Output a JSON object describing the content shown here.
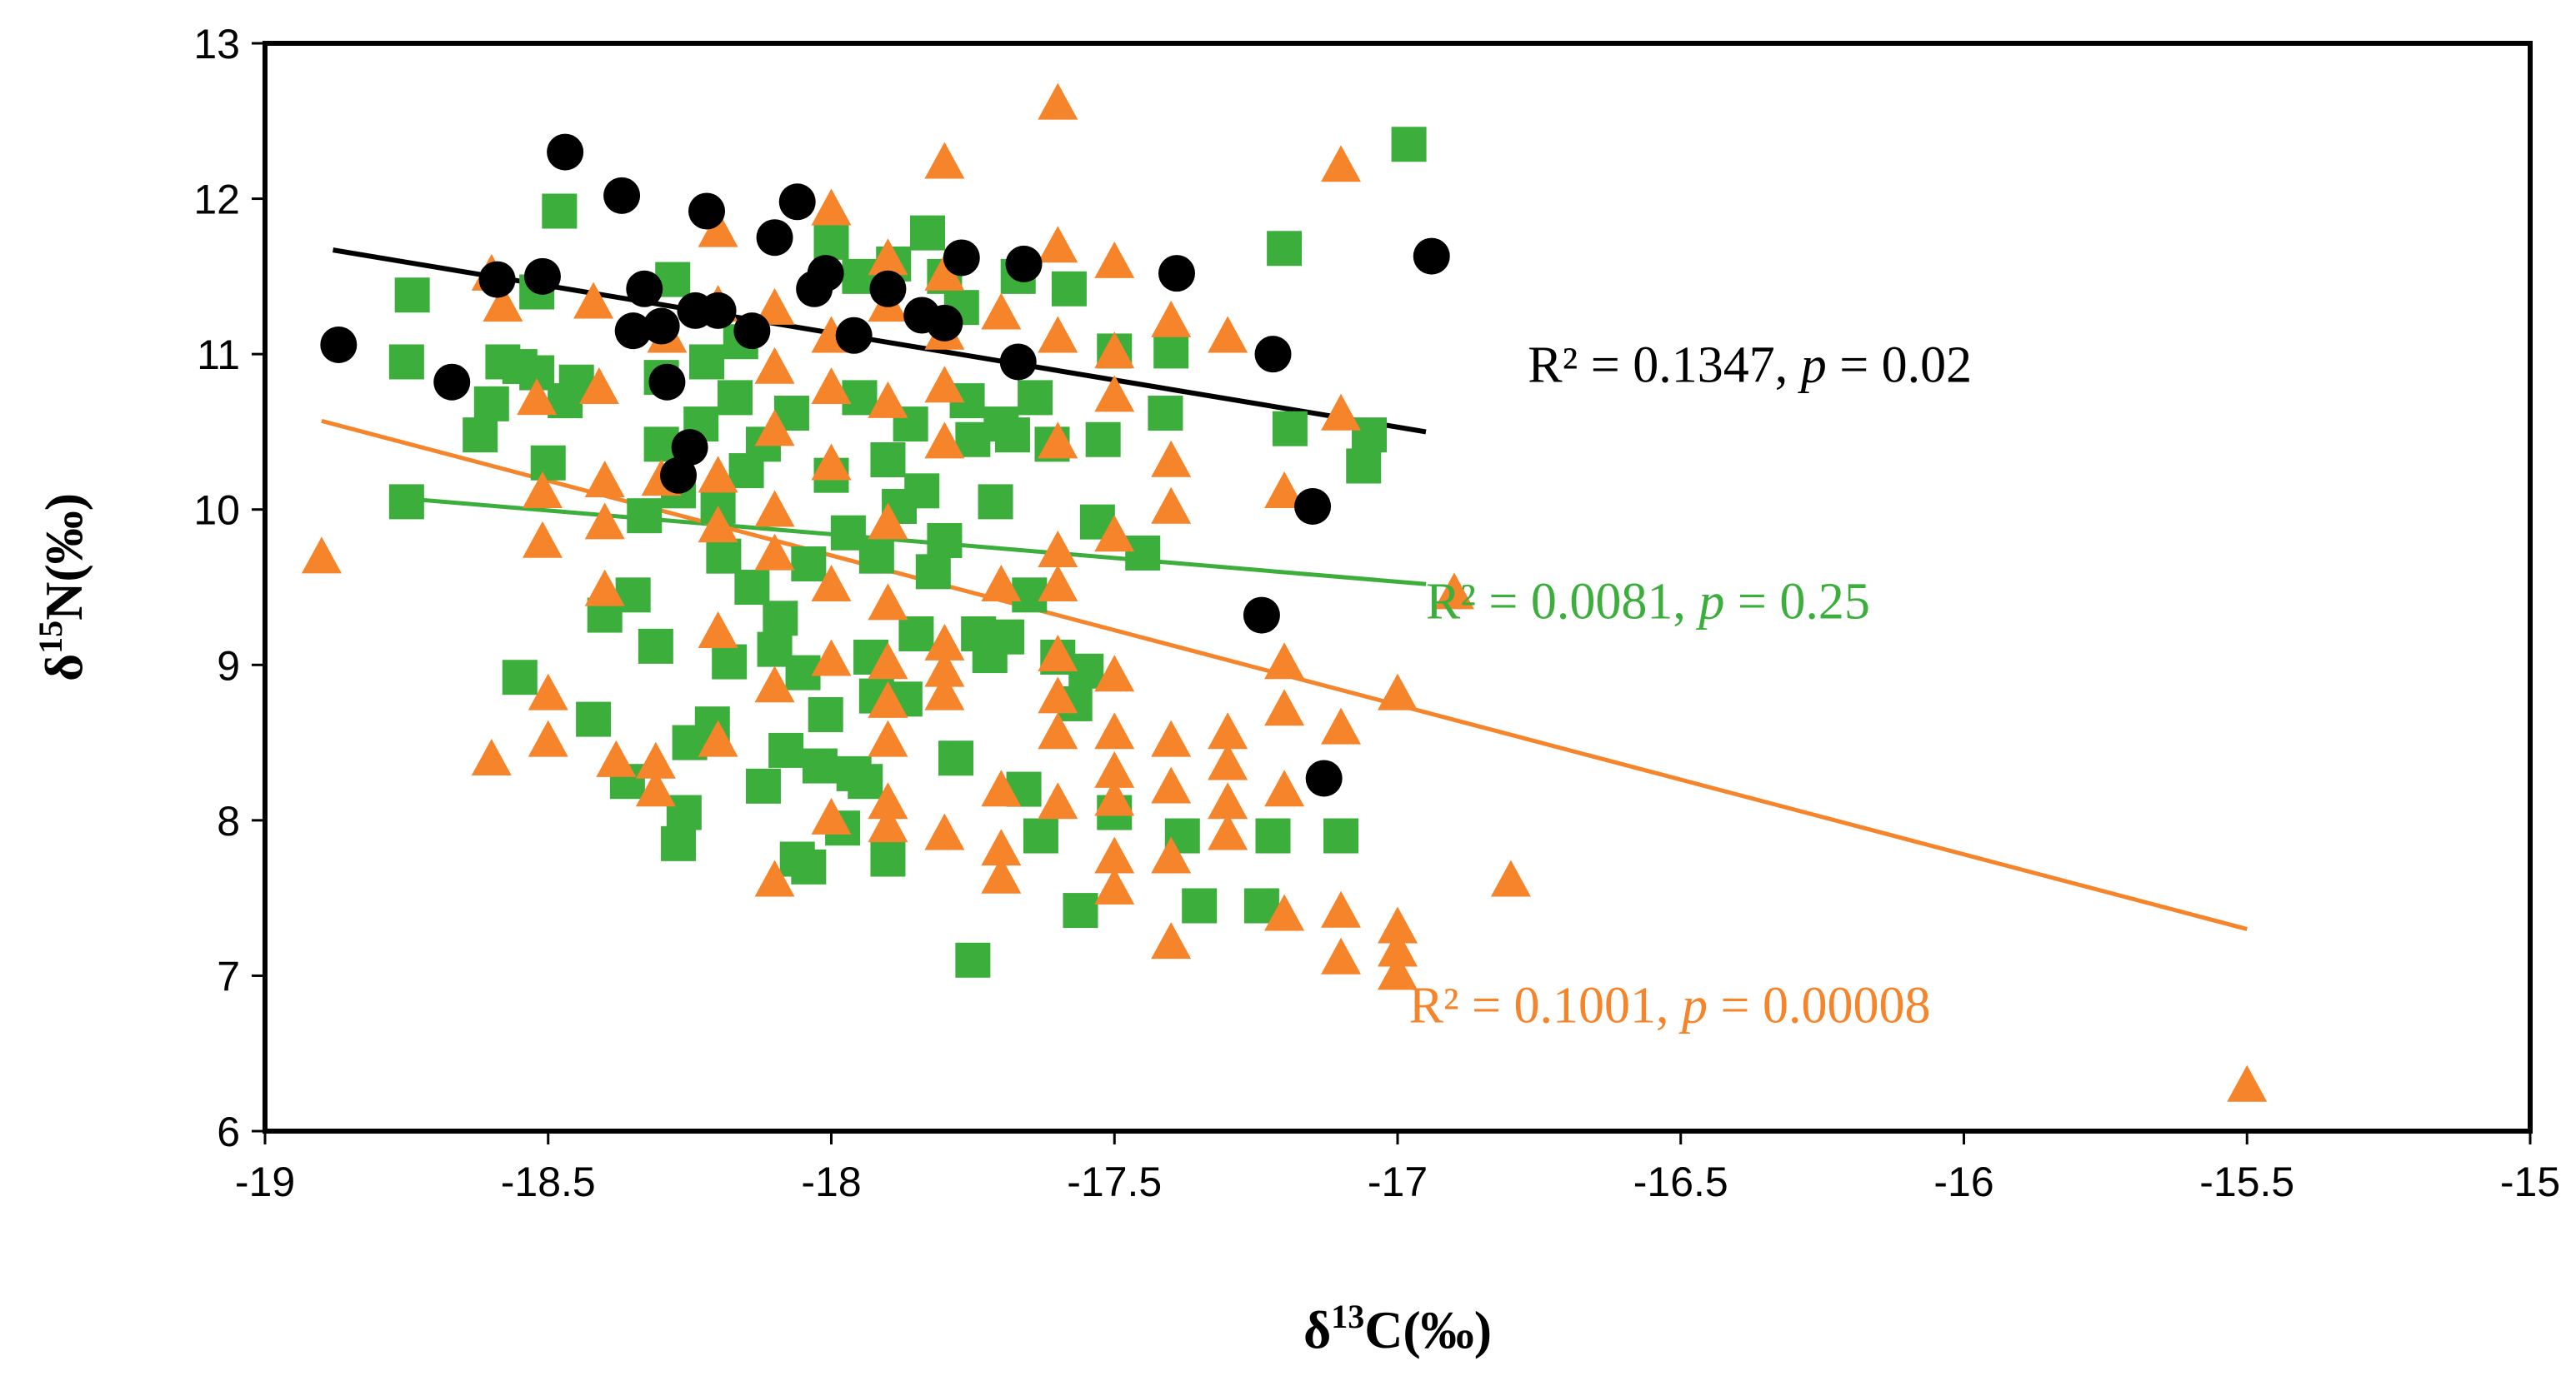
{
  "chart_data": {
    "type": "scatter",
    "title": "",
    "xlabel": {
      "prefix": "δ",
      "sup": "13",
      "suffix": "C(‰)"
    },
    "ylabel": {
      "prefix": "δ",
      "sup": "15",
      "suffix": "N(‰)"
    },
    "xlim": [
      -19,
      -15
    ],
    "ylim": [
      6,
      13
    ],
    "xticks": [
      -19,
      -18.5,
      -18,
      -17.5,
      -17,
      -16.5,
      -16,
      -15.5,
      -15
    ],
    "yticks": [
      6,
      7,
      8,
      9,
      10,
      11,
      12,
      13
    ],
    "xtick_labels": [
      "-19",
      "-18.5",
      "-18",
      "-17.5",
      "-17",
      "-16.5",
      "-16",
      "-15.5",
      "-15"
    ],
    "ytick_labels": [
      "6",
      "7",
      "8",
      "9",
      "10",
      "11",
      "12",
      "13"
    ],
    "grid": false,
    "series": [
      {
        "name": "green squares",
        "marker": "square",
        "color": "#3cae3c",
        "trend": {
          "x": [
            -18.75,
            -16.95
          ],
          "y": [
            10.07,
            9.52
          ]
        },
        "annotation": {
          "r2_text": "R² = 0.0081, ",
          "p_label": "p",
          "p_text": " = 0.25",
          "x": -16.95,
          "y": 9.3
        },
        "points": [
          [
            -18.74,
            11.38
          ],
          [
            -18.75,
            10.95
          ],
          [
            -18.75,
            10.05
          ],
          [
            -18.62,
            10.48
          ],
          [
            -18.6,
            10.68
          ],
          [
            -18.58,
            10.95
          ],
          [
            -18.55,
            10.92
          ],
          [
            -18.52,
            11.4
          ],
          [
            -18.52,
            10.88
          ],
          [
            -18.5,
            10.3
          ],
          [
            -18.48,
            11.92
          ],
          [
            -18.47,
            10.7
          ],
          [
            -18.45,
            10.82
          ],
          [
            -18.55,
            8.92
          ],
          [
            -18.42,
            8.65
          ],
          [
            -18.4,
            9.32
          ],
          [
            -18.36,
            8.25
          ],
          [
            -18.35,
            9.45
          ],
          [
            -18.33,
            9.96
          ],
          [
            -18.31,
            9.12
          ],
          [
            -18.3,
            10.42
          ],
          [
            -18.3,
            10.85
          ],
          [
            -18.28,
            11.48
          ],
          [
            -18.27,
            10.12
          ],
          [
            -18.27,
            7.85
          ],
          [
            -18.26,
            8.05
          ],
          [
            -18.25,
            8.5
          ],
          [
            -18.23,
            10.55
          ],
          [
            -18.22,
            10.95
          ],
          [
            -18.21,
            8.62
          ],
          [
            -18.2,
            10.02
          ],
          [
            -18.19,
            9.7
          ],
          [
            -18.18,
            9.02
          ],
          [
            -18.17,
            10.72
          ],
          [
            -18.16,
            11.08
          ],
          [
            -18.15,
            10.25
          ],
          [
            -18.14,
            9.5
          ],
          [
            -18.12,
            10.42
          ],
          [
            -18.12,
            8.22
          ],
          [
            -18.1,
            9.1
          ],
          [
            -18.09,
            9.3
          ],
          [
            -18.08,
            8.45
          ],
          [
            -18.07,
            10.62
          ],
          [
            -18.06,
            7.75
          ],
          [
            -18.05,
            8.95
          ],
          [
            -18.04,
            9.65
          ],
          [
            -18.04,
            7.7
          ],
          [
            -18.02,
            8.35
          ],
          [
            -18.01,
            8.68
          ],
          [
            -18.0,
            10.22
          ],
          [
            -18.0,
            11.72
          ],
          [
            -17.98,
            7.95
          ],
          [
            -17.97,
            9.85
          ],
          [
            -17.96,
            8.3
          ],
          [
            -17.95,
            10.72
          ],
          [
            -17.95,
            11.5
          ],
          [
            -17.94,
            8.25
          ],
          [
            -17.93,
            9.05
          ],
          [
            -17.92,
            8.8
          ],
          [
            -17.92,
            9.7
          ],
          [
            -17.9,
            7.75
          ],
          [
            -17.9,
            10.32
          ],
          [
            -17.89,
            11.58
          ],
          [
            -17.88,
            10.02
          ],
          [
            -17.87,
            8.78
          ],
          [
            -17.86,
            10.55
          ],
          [
            -17.85,
            9.2
          ],
          [
            -17.84,
            10.12
          ],
          [
            -17.83,
            11.78
          ],
          [
            -17.82,
            9.6
          ],
          [
            -17.8,
            9.8
          ],
          [
            -17.8,
            11.5
          ],
          [
            -17.78,
            8.4
          ],
          [
            -17.77,
            11.3
          ],
          [
            -17.76,
            10.7
          ],
          [
            -17.75,
            10.45
          ],
          [
            -17.75,
            7.1
          ],
          [
            -17.74,
            9.2
          ],
          [
            -17.72,
            9.06
          ],
          [
            -17.71,
            10.05
          ],
          [
            -17.7,
            10.55
          ],
          [
            -17.69,
            9.18
          ],
          [
            -17.68,
            10.48
          ],
          [
            -17.67,
            11.5
          ],
          [
            -17.66,
            8.2
          ],
          [
            -17.65,
            9.45
          ],
          [
            -17.64,
            10.72
          ],
          [
            -17.63,
            7.9
          ],
          [
            -17.61,
            10.42
          ],
          [
            -17.6,
            9.05
          ],
          [
            -17.58,
            11.42
          ],
          [
            -17.57,
            8.75
          ],
          [
            -17.56,
            7.42
          ],
          [
            -17.55,
            8.96
          ],
          [
            -17.53,
            9.92
          ],
          [
            -17.52,
            10.45
          ],
          [
            -17.5,
            11.02
          ],
          [
            -17.5,
            8.05
          ],
          [
            -17.45,
            9.72
          ],
          [
            -17.41,
            10.62
          ],
          [
            -17.4,
            11.02
          ],
          [
            -17.38,
            7.9
          ],
          [
            -17.35,
            7.45
          ],
          [
            -17.24,
            7.45
          ],
          [
            -17.22,
            7.9
          ],
          [
            -17.2,
            11.68
          ],
          [
            -17.19,
            10.52
          ],
          [
            -17.1,
            7.9
          ],
          [
            -17.06,
            10.28
          ],
          [
            -17.05,
            10.48
          ],
          [
            -16.98,
            12.35
          ]
        ]
      },
      {
        "name": "orange triangles",
        "marker": "triangle",
        "color": "#f5842a",
        "trend": {
          "x": [
            -18.9,
            -15.5
          ],
          "y": [
            10.57,
            7.3
          ]
        },
        "annotation": {
          "r2_text": "R² = 0.1001, ",
          "p_label": "p",
          "p_text": " = 0.00008",
          "x": -16.98,
          "y": 6.7
        },
        "points": [
          [
            -18.9,
            9.68
          ],
          [
            -18.6,
            11.5
          ],
          [
            -18.6,
            8.38
          ],
          [
            -18.58,
            11.3
          ],
          [
            -18.52,
            10.7
          ],
          [
            -18.51,
            10.1
          ],
          [
            -18.51,
            9.78
          ],
          [
            -18.5,
            8.5
          ],
          [
            -18.5,
            8.8
          ],
          [
            -18.42,
            11.32
          ],
          [
            -18.41,
            10.77
          ],
          [
            -18.4,
            10.17
          ],
          [
            -18.4,
            9.47
          ],
          [
            -18.4,
            9.9
          ],
          [
            -18.38,
            8.37
          ],
          [
            -18.31,
            8.36
          ],
          [
            -18.31,
            8.18
          ],
          [
            -18.3,
            10.18
          ],
          [
            -18.29,
            11.1
          ],
          [
            -18.2,
            11.78
          ],
          [
            -18.2,
            11.3
          ],
          [
            -18.2,
            10.2
          ],
          [
            -18.2,
            9.88
          ],
          [
            -18.2,
            9.2
          ],
          [
            -18.2,
            8.5
          ],
          [
            -18.1,
            11.28
          ],
          [
            -18.1,
            10.9
          ],
          [
            -18.1,
            10.5
          ],
          [
            -18.1,
            9.98
          ],
          [
            -18.1,
            9.7
          ],
          [
            -18.1,
            8.85
          ],
          [
            -18.1,
            7.6
          ],
          [
            -18.0,
            11.92
          ],
          [
            -18.0,
            11.1
          ],
          [
            -18.0,
            10.77
          ],
          [
            -18.0,
            10.28
          ],
          [
            -18.0,
            9.5
          ],
          [
            -18.0,
            9.02
          ],
          [
            -18.0,
            8.0
          ],
          [
            -17.9,
            11.6
          ],
          [
            -17.9,
            11.3
          ],
          [
            -17.9,
            10.68
          ],
          [
            -17.9,
            9.9
          ],
          [
            -17.9,
            9.38
          ],
          [
            -17.9,
            9.0
          ],
          [
            -17.9,
            8.75
          ],
          [
            -17.9,
            8.5
          ],
          [
            -17.9,
            8.1
          ],
          [
            -17.9,
            7.95
          ],
          [
            -17.8,
            12.22
          ],
          [
            -17.8,
            11.5
          ],
          [
            -17.8,
            11.12
          ],
          [
            -17.8,
            10.78
          ],
          [
            -17.8,
            10.42
          ],
          [
            -17.8,
            9.12
          ],
          [
            -17.8,
            8.95
          ],
          [
            -17.8,
            8.8
          ],
          [
            -17.8,
            7.9
          ],
          [
            -17.7,
            11.25
          ],
          [
            -17.7,
            9.5
          ],
          [
            -17.7,
            8.18
          ],
          [
            -17.7,
            7.8
          ],
          [
            -17.7,
            7.62
          ],
          [
            -17.6,
            12.6
          ],
          [
            -17.6,
            11.68
          ],
          [
            -17.6,
            11.1
          ],
          [
            -17.6,
            10.42
          ],
          [
            -17.6,
            9.72
          ],
          [
            -17.6,
            9.5
          ],
          [
            -17.6,
            9.05
          ],
          [
            -17.6,
            8.78
          ],
          [
            -17.6,
            8.55
          ],
          [
            -17.6,
            8.1
          ],
          [
            -17.5,
            11.58
          ],
          [
            -17.5,
            11.0
          ],
          [
            -17.5,
            10.72
          ],
          [
            -17.5,
            9.82
          ],
          [
            -17.5,
            8.92
          ],
          [
            -17.5,
            8.55
          ],
          [
            -17.5,
            8.3
          ],
          [
            -17.5,
            8.12
          ],
          [
            -17.5,
            7.75
          ],
          [
            -17.5,
            7.55
          ],
          [
            -17.4,
            11.2
          ],
          [
            -17.4,
            10.3
          ],
          [
            -17.4,
            10.0
          ],
          [
            -17.4,
            8.5
          ],
          [
            -17.4,
            8.2
          ],
          [
            -17.4,
            7.75
          ],
          [
            -17.4,
            7.2
          ],
          [
            -17.3,
            11.1
          ],
          [
            -17.3,
            8.55
          ],
          [
            -17.3,
            8.35
          ],
          [
            -17.3,
            8.1
          ],
          [
            -17.3,
            7.9
          ],
          [
            -17.2,
            10.1
          ],
          [
            -17.2,
            9.0
          ],
          [
            -17.2,
            8.7
          ],
          [
            -17.2,
            8.18
          ],
          [
            -17.2,
            7.38
          ],
          [
            -17.1,
            12.2
          ],
          [
            -17.1,
            10.6
          ],
          [
            -17.1,
            8.58
          ],
          [
            -17.1,
            7.4
          ],
          [
            -17.1,
            7.1
          ],
          [
            -17.0,
            8.8
          ],
          [
            -17.0,
            7.3
          ],
          [
            -17.0,
            7.15
          ],
          [
            -17.0,
            7.0
          ],
          [
            -16.9,
            9.45
          ],
          [
            -16.8,
            7.6
          ],
          [
            -15.5,
            6.28
          ]
        ]
      },
      {
        "name": "black circles",
        "marker": "circle",
        "color": "#000000",
        "trend": {
          "x": [
            -18.88,
            -16.95
          ],
          "y": [
            11.67,
            10.5
          ]
        },
        "annotation": {
          "r2_text": "R² = 0.1347, ",
          "p_label": "p",
          "p_text": " = 0.02",
          "x": -16.77,
          "y": 10.82
        },
        "points": [
          [
            -18.87,
            11.06
          ],
          [
            -18.67,
            10.82
          ],
          [
            -18.59,
            11.48
          ],
          [
            -18.51,
            11.5
          ],
          [
            -18.47,
            12.3
          ],
          [
            -18.37,
            12.02
          ],
          [
            -18.35,
            11.15
          ],
          [
            -18.33,
            11.42
          ],
          [
            -18.3,
            11.18
          ],
          [
            -18.29,
            10.82
          ],
          [
            -18.27,
            10.22
          ],
          [
            -18.25,
            10.4
          ],
          [
            -18.24,
            11.28
          ],
          [
            -18.22,
            11.92
          ],
          [
            -18.2,
            11.28
          ],
          [
            -18.14,
            11.15
          ],
          [
            -18.1,
            11.75
          ],
          [
            -18.06,
            11.98
          ],
          [
            -18.03,
            11.42
          ],
          [
            -18.01,
            11.52
          ],
          [
            -17.96,
            11.12
          ],
          [
            -17.9,
            11.42
          ],
          [
            -17.84,
            11.25
          ],
          [
            -17.8,
            11.2
          ],
          [
            -17.77,
            11.62
          ],
          [
            -17.67,
            10.95
          ],
          [
            -17.66,
            11.58
          ],
          [
            -17.39,
            11.52
          ],
          [
            -17.24,
            9.32
          ],
          [
            -17.22,
            11.0
          ],
          [
            -17.15,
            10.02
          ],
          [
            -17.13,
            8.27
          ],
          [
            -16.94,
            11.63
          ]
        ]
      }
    ]
  }
}
